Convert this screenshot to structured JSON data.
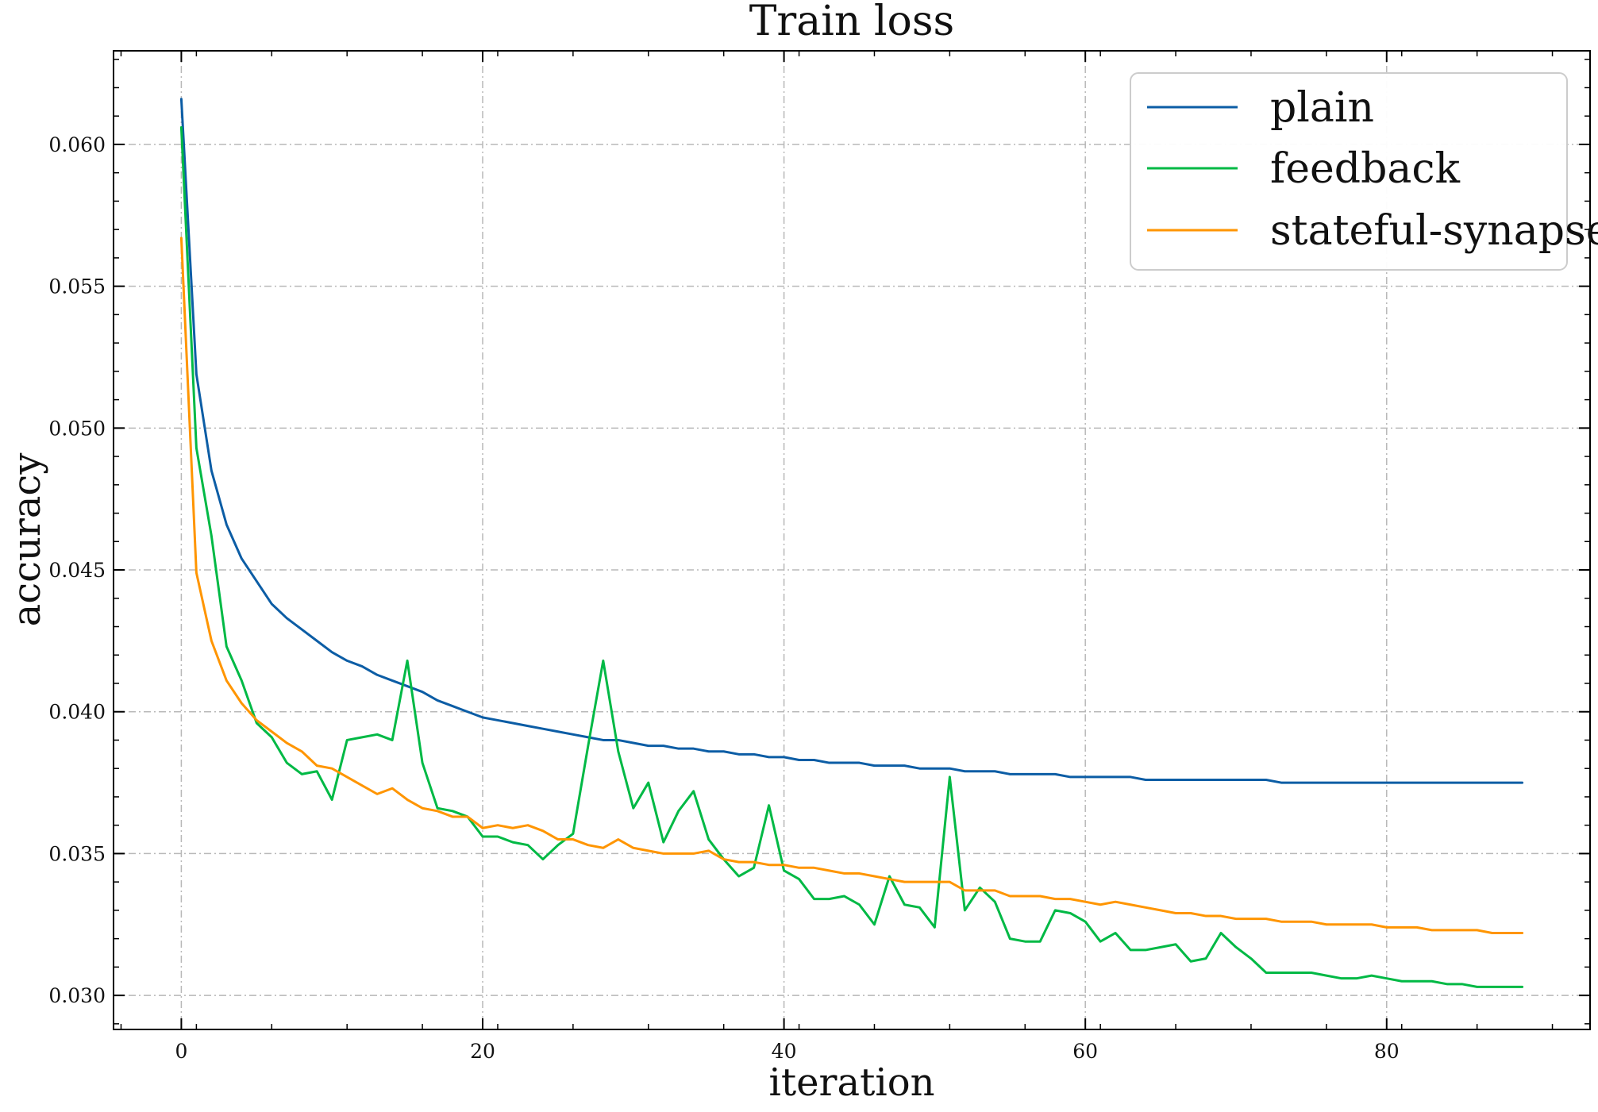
{
  "chart_data": {
    "type": "line",
    "title": "Train loss",
    "xlabel": "iteration",
    "ylabel": "accuracy",
    "xlim": [
      -4.5,
      93.5
    ],
    "ylim": [
      0.0288,
      0.0633
    ],
    "xticks": [
      0,
      20,
      40,
      60,
      80
    ],
    "xtick_labels": [
      "0",
      "20",
      "40",
      "60",
      "80"
    ],
    "yticks": [
      0.03,
      0.035,
      0.04,
      0.045,
      0.05,
      0.055,
      0.06
    ],
    "ytick_labels": [
      "0.030",
      "0.035",
      "0.040",
      "0.045",
      "0.050",
      "0.055",
      "0.060"
    ],
    "grid": true,
    "legend_position": "top-right",
    "x": [
      0,
      1,
      2,
      3,
      4,
      5,
      6,
      7,
      8,
      9,
      10,
      11,
      12,
      13,
      14,
      15,
      16,
      17,
      18,
      19,
      20,
      21,
      22,
      23,
      24,
      25,
      26,
      27,
      28,
      29,
      30,
      31,
      32,
      33,
      34,
      35,
      36,
      37,
      38,
      39,
      40,
      41,
      42,
      43,
      44,
      45,
      46,
      47,
      48,
      49,
      50,
      51,
      52,
      53,
      54,
      55,
      56,
      57,
      58,
      59,
      60,
      61,
      62,
      63,
      64,
      65,
      66,
      67,
      68,
      69,
      70,
      71,
      72,
      73,
      74,
      75,
      76,
      77,
      78,
      79,
      80,
      81,
      82,
      83,
      84,
      85,
      86,
      87,
      88,
      89
    ],
    "series": [
      {
        "name": "plain",
        "color": "#0C5DA5",
        "values": [
          0.0616,
          0.0519,
          0.0485,
          0.0466,
          0.0454,
          0.0446,
          0.0438,
          0.0433,
          0.0429,
          0.0425,
          0.0421,
          0.0418,
          0.0416,
          0.0413,
          0.0411,
          0.0409,
          0.0407,
          0.0404,
          0.0402,
          0.04,
          0.0398,
          0.0397,
          0.0396,
          0.0395,
          0.0394,
          0.0393,
          0.0392,
          0.0391,
          0.039,
          0.039,
          0.0389,
          0.0388,
          0.0388,
          0.0387,
          0.0387,
          0.0386,
          0.0386,
          0.0385,
          0.0385,
          0.0384,
          0.0384,
          0.0383,
          0.0383,
          0.0382,
          0.0382,
          0.0382,
          0.0381,
          0.0381,
          0.0381,
          0.038,
          0.038,
          0.038,
          0.0379,
          0.0379,
          0.0379,
          0.0378,
          0.0378,
          0.0378,
          0.0378,
          0.0377,
          0.0377,
          0.0377,
          0.0377,
          0.0377,
          0.0376,
          0.0376,
          0.0376,
          0.0376,
          0.0376,
          0.0376,
          0.0376,
          0.0376,
          0.0376,
          0.0375,
          0.0375,
          0.0375,
          0.0375,
          0.0375,
          0.0375,
          0.0375,
          0.0375,
          0.0375,
          0.0375,
          0.0375,
          0.0375,
          0.0375,
          0.0375,
          0.0375,
          0.0375,
          0.0375
        ]
      },
      {
        "name": "feedback",
        "color": "#00B945",
        "values": [
          0.0606,
          0.0493,
          0.0462,
          0.0423,
          0.0411,
          0.0396,
          0.0391,
          0.0382,
          0.0378,
          0.0379,
          0.0369,
          0.039,
          0.0391,
          0.0392,
          0.039,
          0.0418,
          0.0382,
          0.0366,
          0.0365,
          0.0363,
          0.0356,
          0.0356,
          0.0354,
          0.0353,
          0.0348,
          0.0353,
          0.0357,
          0.0388,
          0.0418,
          0.0386,
          0.0366,
          0.0375,
          0.0354,
          0.0365,
          0.0372,
          0.0355,
          0.0348,
          0.0342,
          0.0345,
          0.0367,
          0.0344,
          0.0341,
          0.0334,
          0.0334,
          0.0335,
          0.0332,
          0.0325,
          0.0342,
          0.0332,
          0.0331,
          0.0324,
          0.0377,
          0.033,
          0.0338,
          0.0333,
          0.032,
          0.0319,
          0.0319,
          0.033,
          0.0329,
          0.0326,
          0.0319,
          0.0322,
          0.0316,
          0.0316,
          0.0317,
          0.0318,
          0.0312,
          0.0313,
          0.0322,
          0.0317,
          0.0313,
          0.0308,
          0.0308,
          0.0308,
          0.0308,
          0.0307,
          0.0306,
          0.0306,
          0.0307,
          0.0306,
          0.0305,
          0.0305,
          0.0305,
          0.0304,
          0.0304,
          0.0303,
          0.0303,
          0.0303,
          0.0303
        ]
      },
      {
        "name": "stateful-synapse",
        "color": "#FF9500",
        "values": [
          0.0567,
          0.0449,
          0.0425,
          0.0411,
          0.0403,
          0.0397,
          0.0393,
          0.0389,
          0.0386,
          0.0381,
          0.038,
          0.0377,
          0.0374,
          0.0371,
          0.0373,
          0.0369,
          0.0366,
          0.0365,
          0.0363,
          0.0363,
          0.0359,
          0.036,
          0.0359,
          0.036,
          0.0358,
          0.0355,
          0.0355,
          0.0353,
          0.0352,
          0.0355,
          0.0352,
          0.0351,
          0.035,
          0.035,
          0.035,
          0.0351,
          0.0348,
          0.0347,
          0.0347,
          0.0346,
          0.0346,
          0.0345,
          0.0345,
          0.0344,
          0.0343,
          0.0343,
          0.0342,
          0.0341,
          0.034,
          0.034,
          0.034,
          0.034,
          0.0337,
          0.0337,
          0.0337,
          0.0335,
          0.0335,
          0.0335,
          0.0334,
          0.0334,
          0.0333,
          0.0332,
          0.0333,
          0.0332,
          0.0331,
          0.033,
          0.0329,
          0.0329,
          0.0328,
          0.0328,
          0.0327,
          0.0327,
          0.0327,
          0.0326,
          0.0326,
          0.0326,
          0.0325,
          0.0325,
          0.0325,
          0.0325,
          0.0324,
          0.0324,
          0.0324,
          0.0323,
          0.0323,
          0.0323,
          0.0323,
          0.0322,
          0.0322,
          0.0322
        ]
      }
    ]
  }
}
